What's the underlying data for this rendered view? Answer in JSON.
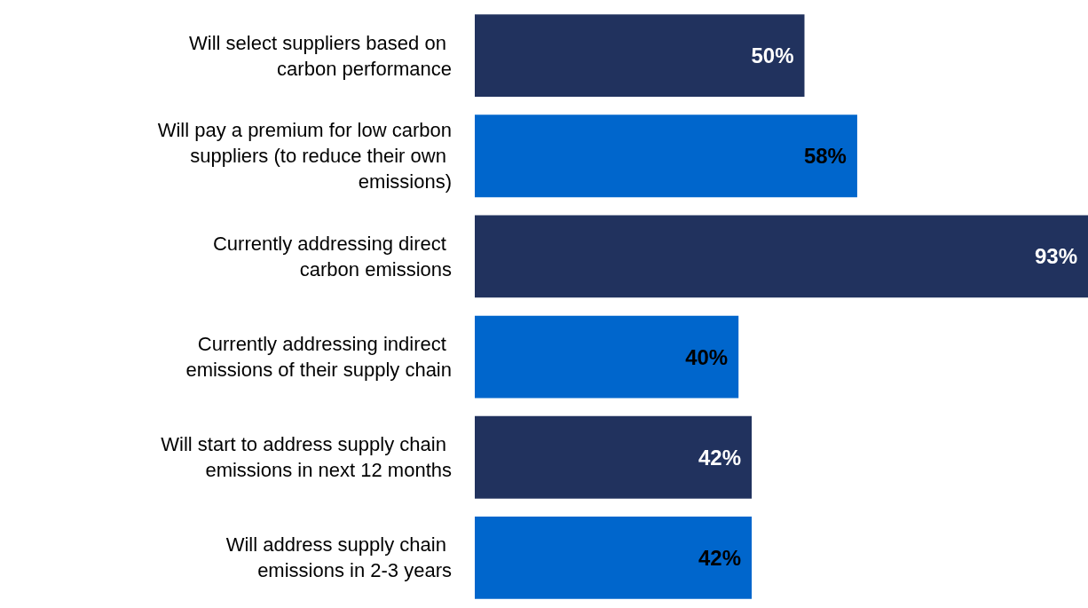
{
  "chart_data": {
    "type": "bar",
    "orientation": "horizontal",
    "tick_labels": "y",
    "categories": [
      "Will select suppliers based on carbon performance",
      "Will pay a premium for low carbon suppliers (to reduce their own emissions)",
      "Currently addressing direct carbon emissions",
      "Currently addressing indirect emissions of their supply chain",
      "Will start to address supply chain emissions in next 12 months",
      "Will address supply chain emissions in 2-3 years"
    ],
    "values": [
      50,
      58,
      93,
      40,
      42,
      42
    ],
    "value_labels": [
      "50%",
      "58%",
      "93%",
      "40%",
      "42%",
      "42%"
    ],
    "colors": [
      "#21325e",
      "#0066cc",
      "#21325e",
      "#0066cc",
      "#21325e",
      "#0066cc"
    ],
    "grid": false
  }
}
